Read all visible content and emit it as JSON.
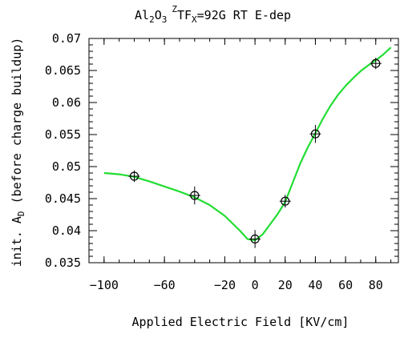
{
  "chart_data": {
    "type": "scatter",
    "title_parts": {
      "material_main": "Al",
      "material_sub1": "2",
      "material_mid": "O",
      "material_sub2": "3",
      "field_sup": "Z",
      "field_main": "TF",
      "field_sub": "X",
      "rest": "=92G  RT  E-dep"
    },
    "xlabel": "Applied Electric Field [KV/cm]",
    "ylabel_parts": {
      "main": "init. A",
      "sub": "D",
      "rest": " (before charge buildup)"
    },
    "xlim": [
      -110,
      95
    ],
    "ylim": [
      0.035,
      0.07
    ],
    "x_ticks": [
      -100,
      -60,
      -20,
      0,
      20,
      40,
      60,
      80
    ],
    "x_tick_labels": [
      "−100",
      "−60",
      "−20",
      "0",
      "20",
      "40",
      "60",
      "80"
    ],
    "y_ticks": [
      0.035,
      0.04,
      0.045,
      0.05,
      0.055,
      0.06,
      0.065,
      0.07
    ],
    "y_tick_labels": [
      "0.035",
      "0.04",
      "0.045",
      "0.05",
      "0.055",
      "0.06",
      "0.065",
      "0.07"
    ],
    "grid": false,
    "series": [
      {
        "points": [
          {
            "x": -80,
            "y": 0.0485,
            "err": 0.0009
          },
          {
            "x": -40,
            "y": 0.0455,
            "err": 0.0014
          },
          {
            "x": 0,
            "y": 0.0387,
            "err": 0.0014
          },
          {
            "x": 20,
            "y": 0.0446,
            "err": 0.001
          },
          {
            "x": 40,
            "y": 0.0551,
            "err": 0.0014
          },
          {
            "x": 80,
            "y": 0.0661,
            "err": 0.0009
          }
        ]
      }
    ],
    "fit_curve": {
      "color": "#22dd33",
      "points": [
        [
          -100,
          0.049
        ],
        [
          -90,
          0.0488
        ],
        [
          -80,
          0.0484
        ],
        [
          -70,
          0.0477
        ],
        [
          -60,
          0.0469
        ],
        [
          -50,
          0.0461
        ],
        [
          -40,
          0.0452
        ],
        [
          -30,
          0.044
        ],
        [
          -20,
          0.0423
        ],
        [
          -10,
          0.04
        ],
        [
          -5,
          0.0387
        ],
        [
          0,
          0.0385
        ],
        [
          5,
          0.0394
        ],
        [
          10,
          0.041
        ],
        [
          15,
          0.0426
        ],
        [
          20,
          0.0445
        ],
        [
          25,
          0.0475
        ],
        [
          30,
          0.0505
        ],
        [
          35,
          0.053
        ],
        [
          40,
          0.0552
        ],
        [
          45,
          0.0575
        ],
        [
          50,
          0.0595
        ],
        [
          55,
          0.0612
        ],
        [
          60,
          0.0626
        ],
        [
          65,
          0.0638
        ],
        [
          70,
          0.0649
        ],
        [
          75,
          0.0658
        ],
        [
          80,
          0.0666
        ],
        [
          85,
          0.0675
        ],
        [
          90,
          0.0686
        ]
      ]
    }
  }
}
